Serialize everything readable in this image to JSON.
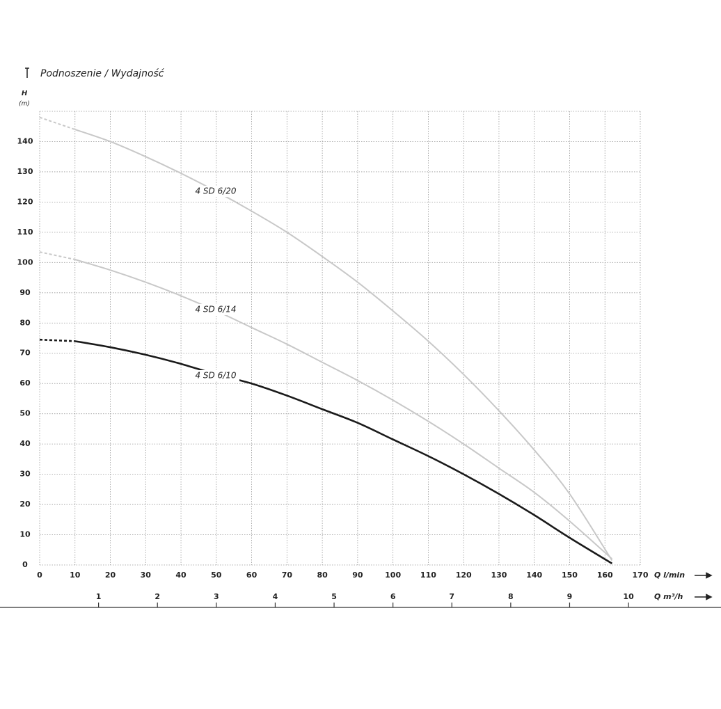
{
  "chart_data": {
    "type": "line",
    "title": "Podnoszenie / Wydajność",
    "y_label": "H",
    "y_unit": "(m)",
    "x_label": "Q l/min",
    "x2_label": "Q m³/h",
    "x": [
      0,
      10,
      20,
      30,
      40,
      50,
      60,
      70,
      80,
      90,
      100,
      110,
      120,
      130,
      140,
      150,
      162
    ],
    "series": [
      {
        "name": "4 SD 6/20",
        "color": "#c8c8c8",
        "label_color": "#b0b0b0",
        "values": [
          148,
          144,
          140,
          135,
          129.5,
          123.5,
          117,
          110,
          102,
          93.5,
          84,
          74,
          63,
          51,
          38,
          23.5,
          1.5
        ]
      },
      {
        "name": "4 SD 6/14",
        "color": "#c8c8c8",
        "label_color": "#b0b0b0",
        "values": [
          103.5,
          101,
          97.5,
          93.5,
          89,
          84,
          78.5,
          73,
          67,
          61,
          54.5,
          47.5,
          40,
          32,
          24,
          14.5,
          2
        ]
      },
      {
        "name": "4 SD 6/10",
        "color": "#1a1a1a",
        "label_color": "#1a1a1a",
        "values": [
          74.5,
          74,
          72,
          69.5,
          66.5,
          63,
          60,
          56,
          51.5,
          47,
          41.5,
          36,
          30,
          23.5,
          16.5,
          9,
          0.5
        ]
      }
    ],
    "xlim": [
      0,
      170
    ],
    "xticks": [
      0,
      10,
      20,
      30,
      40,
      50,
      60,
      70,
      80,
      90,
      100,
      110,
      120,
      130,
      140,
      150,
      160,
      170
    ],
    "x2lim": [
      0,
      10.2
    ],
    "x2ticks": [
      1,
      2,
      3,
      4,
      5,
      6,
      7,
      8,
      9,
      10
    ],
    "ylim": [
      0,
      150
    ],
    "yticks": [
      0,
      10,
      20,
      30,
      40,
      50,
      60,
      70,
      80,
      90,
      100,
      110,
      120,
      130,
      140
    ],
    "grid": true
  }
}
